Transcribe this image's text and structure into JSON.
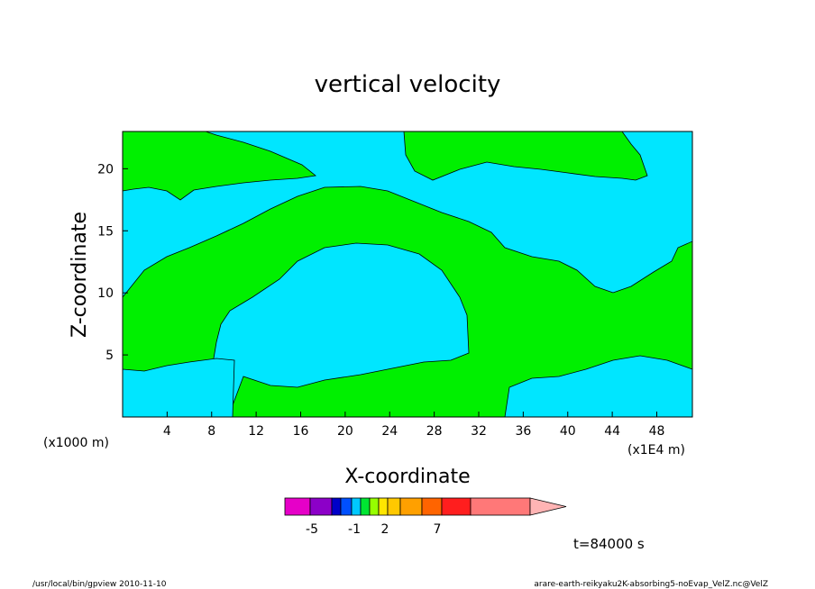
{
  "chart_data": {
    "type": "heatmap",
    "title": "vertical velocity",
    "xlabel": "X-coordinate",
    "ylabel": "Z-coordinate",
    "x_unit_label": "(x1E4 m)",
    "y_unit_label": "(x1000 m)",
    "x_ticks": [
      "4",
      "8",
      "12",
      "16",
      "20",
      "24",
      "28",
      "32",
      "36",
      "40",
      "44",
      "48"
    ],
    "x_tick_values": [
      4,
      8,
      12,
      16,
      20,
      24,
      28,
      32,
      36,
      40,
      44,
      48
    ],
    "y_ticks": [
      "5",
      "10",
      "15",
      "20"
    ],
    "y_tick_values": [
      5,
      10,
      15,
      20
    ],
    "xlim": [
      0,
      51.2
    ],
    "ylim": [
      0,
      23
    ],
    "grid": false,
    "colorbar": {
      "colors": [
        "#e600c8",
        "#8c00c8",
        "#0000c8",
        "#0050ff",
        "#00c8ff",
        "#00e632",
        "#96ff00",
        "#ffe600",
        "#ffc800",
        "#ffa000",
        "#ff6400",
        "#ff1e1e",
        "#ff7878",
        "#ffb4b4"
      ],
      "tick_labels": [
        "-5",
        "-1",
        "2",
        "7"
      ]
    },
    "fill_colors": {
      "background": "#00e6ff",
      "positive_region": "#00f000"
    },
    "time_label": "t=84000 s"
  },
  "footer": {
    "left": "/usr/local/bin/gpview  2010-11-10",
    "right": "arare-earth-reikyaku2K-absorbing5-noEvap_VelZ.nc@VelZ"
  }
}
